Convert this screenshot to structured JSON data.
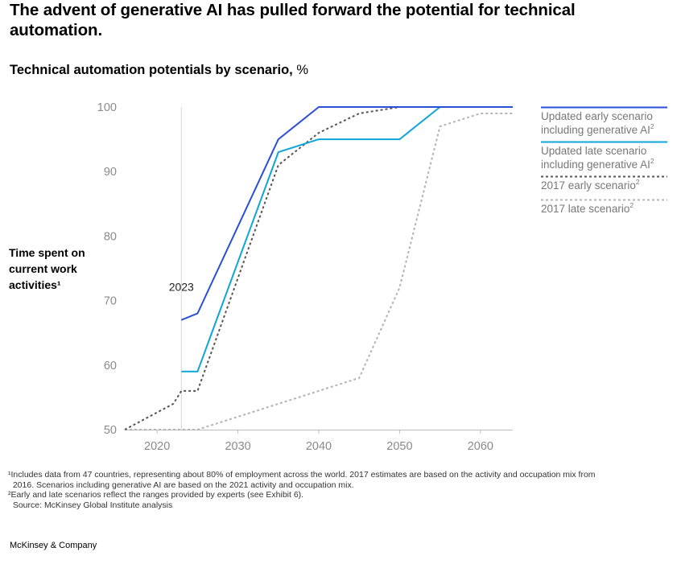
{
  "header": {
    "title": "The advent of generative AI has pulled forward the potential for technical automation.",
    "subtitle": "Technical automation potentials by scenario,",
    "subtitle_unit": "%"
  },
  "chart_data": {
    "type": "line",
    "ylabel": "Time spent on current work activities¹",
    "xlim": [
      2016,
      2064
    ],
    "ylim": [
      50,
      100
    ],
    "x_ticks": [
      2020,
      2030,
      2040,
      2050,
      2060
    ],
    "y_ticks": [
      50,
      60,
      70,
      80,
      90,
      100
    ],
    "annotation": {
      "label": "2023",
      "x": 2023
    },
    "series": [
      {
        "name": "Updated early scenario including generative AI",
        "footnote_marker": "2",
        "color": "#2a4fd7",
        "style": "solid",
        "points": [
          [
            2023,
            67
          ],
          [
            2025,
            68
          ],
          [
            2035,
            95
          ],
          [
            2040,
            100
          ],
          [
            2064,
            100
          ]
        ]
      },
      {
        "name": "Updated late scenario including generative AI",
        "footnote_marker": "2",
        "color": "#0ea5d8",
        "style": "solid",
        "points": [
          [
            2023,
            59
          ],
          [
            2025,
            59
          ],
          [
            2035,
            93
          ],
          [
            2040,
            95
          ],
          [
            2050,
            95
          ],
          [
            2055,
            100
          ],
          [
            2064,
            100
          ]
        ]
      },
      {
        "name": "2017 early scenario",
        "footnote_marker": "2",
        "color": "#555555",
        "style": "dotted",
        "points": [
          [
            2016,
            50
          ],
          [
            2022,
            54
          ],
          [
            2023,
            56
          ],
          [
            2025,
            56
          ],
          [
            2035,
            91
          ],
          [
            2040,
            96
          ],
          [
            2045,
            99
          ],
          [
            2050,
            100
          ],
          [
            2064,
            100
          ]
        ]
      },
      {
        "name": "2017 late scenario",
        "footnote_marker": "2",
        "color": "#b3b3b3",
        "style": "dotted",
        "points": [
          [
            2016,
            50
          ],
          [
            2025,
            50
          ],
          [
            2035,
            54
          ],
          [
            2045,
            58
          ],
          [
            2050,
            72
          ],
          [
            2055,
            97
          ],
          [
            2060,
            99
          ],
          [
            2064,
            99
          ]
        ]
      }
    ]
  },
  "footnotes": [
    "¹Includes data from 47 countries, representing about 80% of employment across the world. 2017 estimates are based on the activity and occupation mix from",
    "  2016. Scenarios including generative AI are based on the 2021 activity and occupation mix.",
    "²Early and late scenarios reflect the ranges provided by experts (see Exhibit 6).",
    "  Source: McKinsey Global Institute analysis"
  ],
  "brand": "McKinsey & Company"
}
